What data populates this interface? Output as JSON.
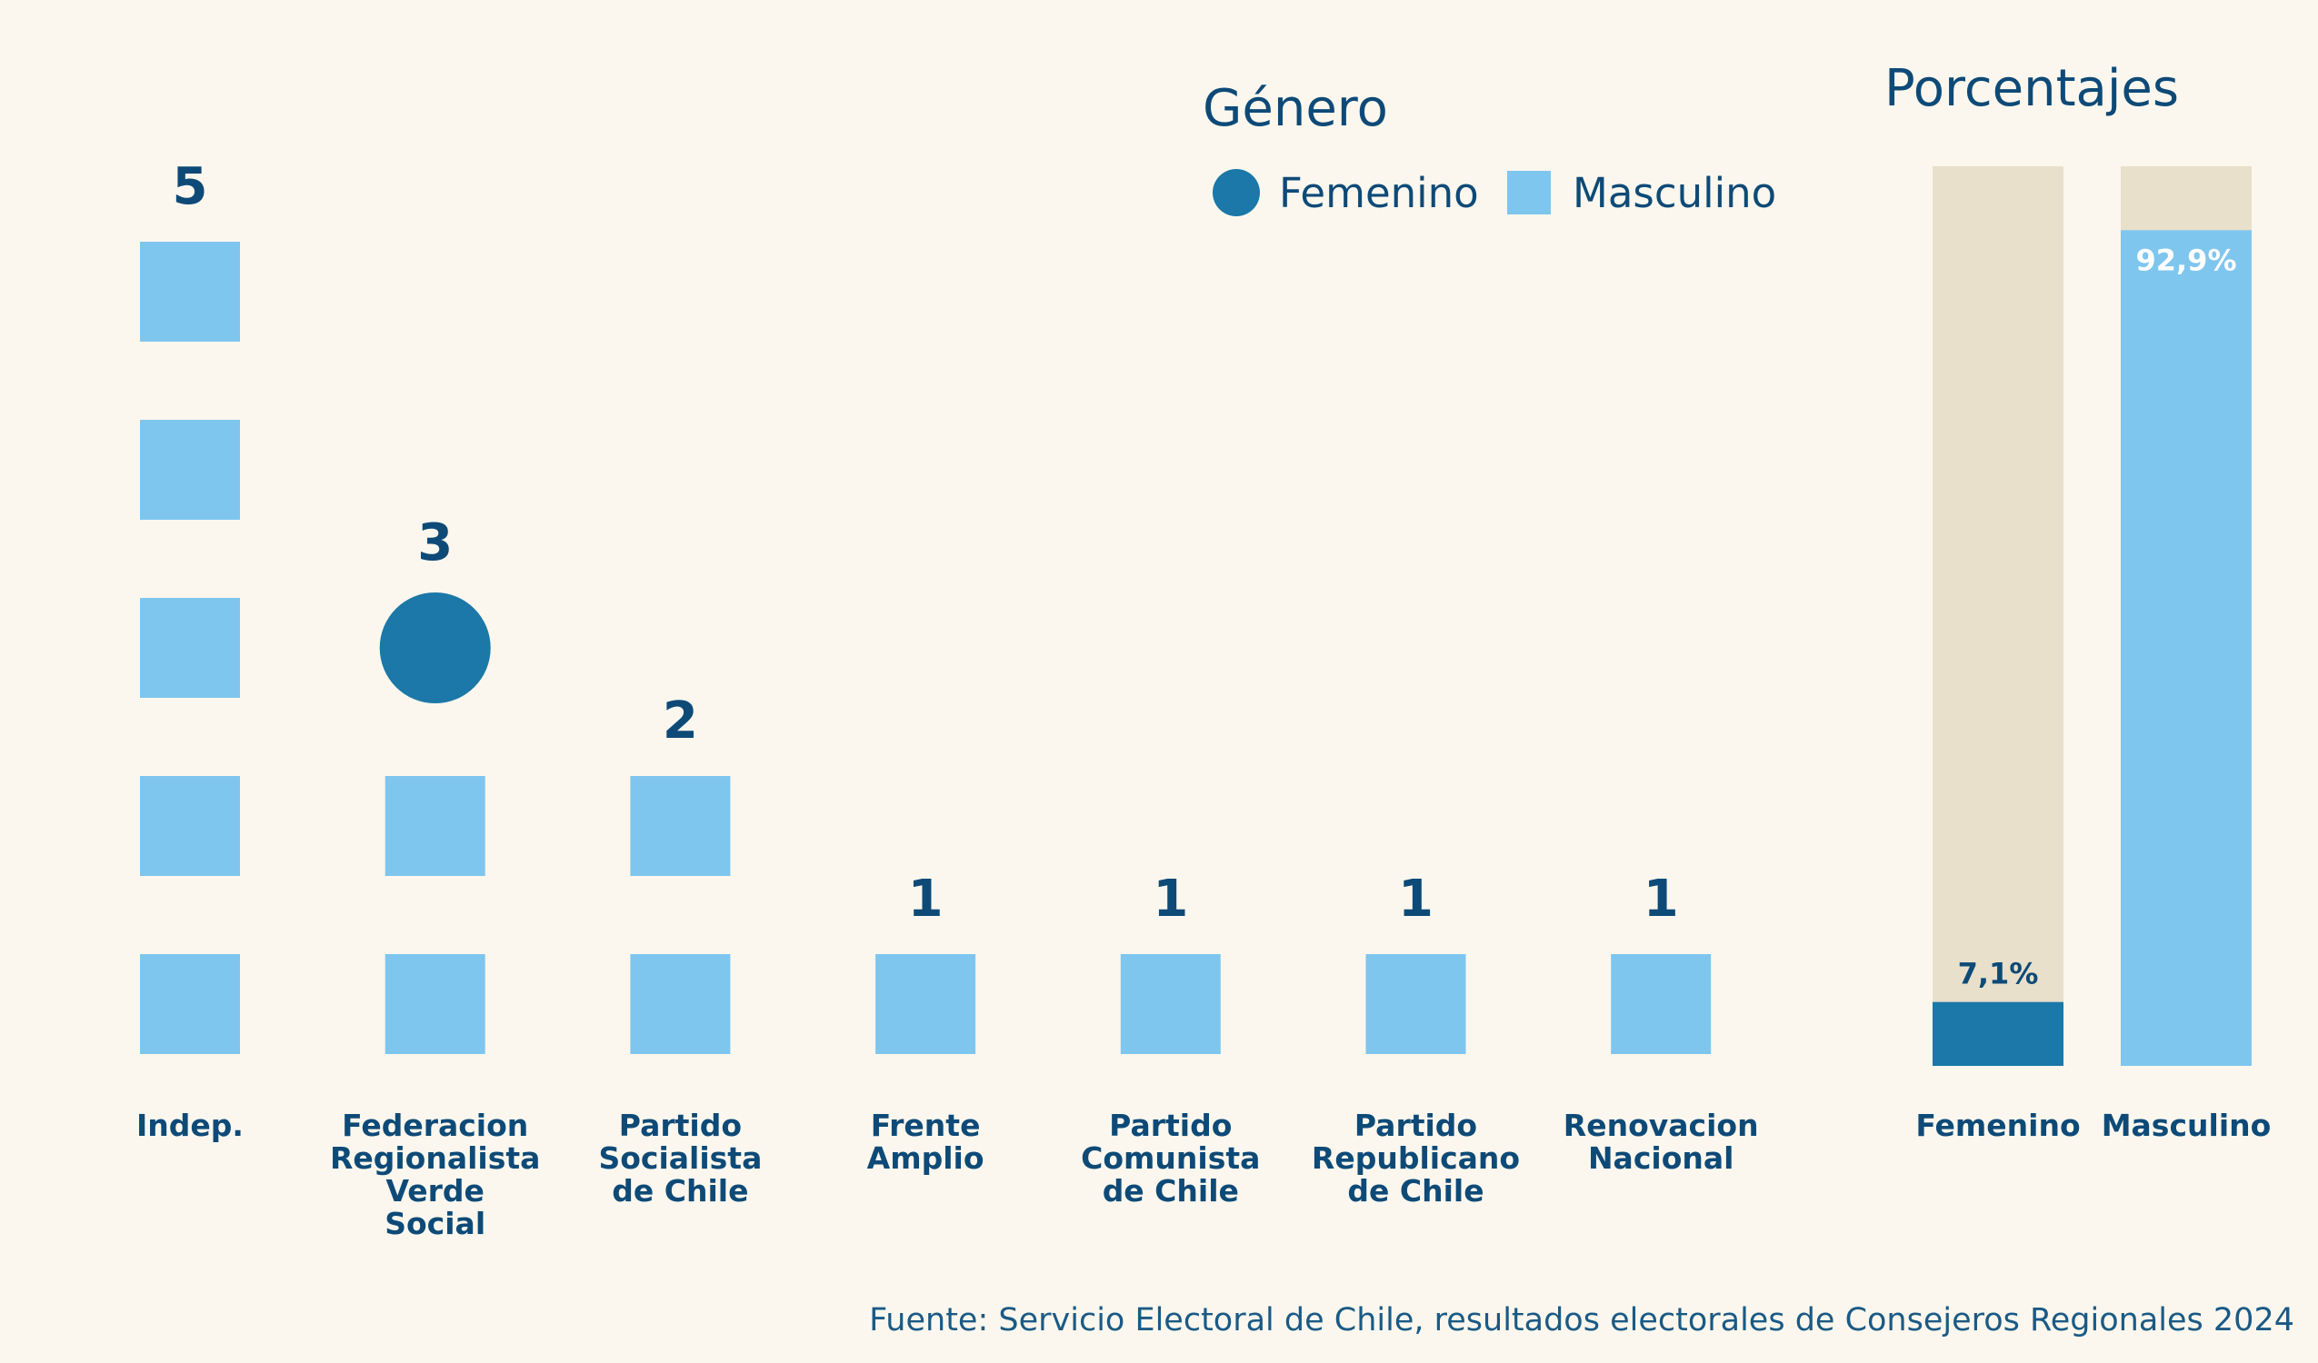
{
  "chart_data": [
    {
      "type": "unit",
      "categories": [
        "Indep.",
        "Federacion Regionalista Verde Social",
        "Partido Socialista de Chile",
        "Frente Amplio",
        "Partido Comunista de Chile",
        "Partido Republicano de Chile",
        "Renovacion Nacional"
      ],
      "category_lines": [
        [
          "Indep."
        ],
        [
          "Federacion",
          "Regionalista",
          "Verde",
          "Social"
        ],
        [
          "Partido",
          "Socialista",
          "de Chile"
        ],
        [
          "Frente",
          "Amplio"
        ],
        [
          "Partido",
          "Comunista",
          "de Chile"
        ],
        [
          "Partido",
          "Republicano",
          "de Chile"
        ],
        [
          "Renovacion",
          "Nacional"
        ]
      ],
      "totals": [
        5,
        3,
        2,
        1,
        1,
        1,
        1
      ],
      "series": [
        {
          "name": "Femenino",
          "values": [
            0,
            1,
            0,
            0,
            0,
            0,
            0
          ],
          "shape": "circle",
          "color": "#1b78a8"
        },
        {
          "name": "Masculino",
          "values": [
            5,
            2,
            2,
            1,
            1,
            1,
            1
          ],
          "shape": "square",
          "color": "#7fc6ef"
        }
      ],
      "legend": {
        "title": "Género",
        "placement": "top-right"
      }
    },
    {
      "type": "bar",
      "title": "Porcentajes",
      "categories": [
        "Femenino",
        "Masculino"
      ],
      "values": [
        7.1,
        92.9
      ],
      "value_labels": [
        "7,1%",
        "92,9%"
      ],
      "colors": [
        "#1b78a8",
        "#7fc6ef"
      ],
      "track_color": "#e8e0ca",
      "ylim": [
        0,
        100
      ]
    }
  ],
  "source": "Fuente: Servicio Electoral de Chile, resultados electorales de Consejeros Regionales 2024",
  "colors": {
    "background": "#fbf7ee",
    "text": "#0e4a77",
    "femenino": "#1b78a8",
    "masculino": "#7fc6ef",
    "track": "#e8e0ca"
  }
}
